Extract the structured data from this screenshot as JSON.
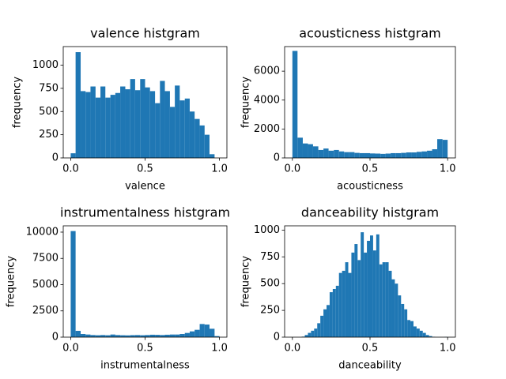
{
  "chart_data": [
    {
      "type": "histogram",
      "title": "valence histgram",
      "xlabel": "valence",
      "ylabel": "frequency",
      "color": "#1f77b4",
      "bins": [
        0,
        0.033,
        0.067,
        0.1,
        0.133,
        0.167,
        0.2,
        0.233,
        0.267,
        0.3,
        0.333,
        0.367,
        0.4,
        0.433,
        0.467,
        0.5,
        0.533,
        0.567,
        0.6,
        0.633,
        0.667,
        0.7,
        0.733,
        0.767,
        0.8,
        0.833,
        0.867,
        0.9,
        0.933,
        0.967,
        1
      ],
      "values": [
        50,
        1140,
        720,
        710,
        770,
        650,
        770,
        650,
        680,
        700,
        770,
        740,
        850,
        730,
        850,
        760,
        720,
        590,
        830,
        720,
        550,
        780,
        620,
        640,
        500,
        420,
        350,
        250,
        40,
        0
      ],
      "xlim": [
        -0.05,
        1.05
      ],
      "ylim": [
        0,
        1200
      ],
      "xticks": [
        {
          "value": 0,
          "label": "0.0"
        },
        {
          "value": 0.5,
          "label": "0.5"
        },
        {
          "value": 1,
          "label": "1.0"
        }
      ],
      "yticks": [
        0,
        250,
        500,
        750,
        1000
      ]
    },
    {
      "type": "histogram",
      "title": "acousticness histgram",
      "xlabel": "acousticness",
      "ylabel": "frequency",
      "color": "#1f77b4",
      "bins": [
        0,
        0.033,
        0.067,
        0.1,
        0.133,
        0.167,
        0.2,
        0.233,
        0.267,
        0.3,
        0.333,
        0.367,
        0.4,
        0.433,
        0.467,
        0.5,
        0.533,
        0.567,
        0.6,
        0.633,
        0.667,
        0.7,
        0.733,
        0.767,
        0.8,
        0.833,
        0.867,
        0.9,
        0.933,
        0.967,
        1
      ],
      "values": [
        7400,
        1400,
        1000,
        950,
        800,
        550,
        650,
        500,
        550,
        450,
        400,
        400,
        350,
        330,
        330,
        310,
        300,
        280,
        300,
        330,
        330,
        350,
        380,
        380,
        420,
        450,
        500,
        600,
        1300,
        1250
      ],
      "xlim": [
        -0.05,
        1.05
      ],
      "ylim": [
        0,
        7700
      ],
      "xticks": [
        {
          "value": 0,
          "label": "0.0"
        },
        {
          "value": 0.5,
          "label": "0.5"
        },
        {
          "value": 1,
          "label": "1.0"
        }
      ],
      "yticks": [
        0,
        2000,
        4000,
        6000
      ]
    },
    {
      "type": "histogram",
      "title": "instrumentalness histgram",
      "xlabel": "instrumentalness",
      "ylabel": "frequency",
      "color": "#1f77b4",
      "bins": [
        0,
        0.033,
        0.067,
        0.1,
        0.133,
        0.167,
        0.2,
        0.233,
        0.267,
        0.3,
        0.333,
        0.367,
        0.4,
        0.433,
        0.467,
        0.5,
        0.533,
        0.567,
        0.6,
        0.633,
        0.667,
        0.7,
        0.733,
        0.767,
        0.8,
        0.833,
        0.867,
        0.9,
        0.933,
        0.967,
        1
      ],
      "values": [
        10100,
        600,
        300,
        250,
        200,
        180,
        200,
        180,
        250,
        200,
        180,
        170,
        190,
        200,
        180,
        200,
        230,
        220,
        200,
        230,
        250,
        250,
        300,
        400,
        550,
        700,
        1250,
        1200,
        800,
        100
      ],
      "xlim": [
        -0.05,
        1.05
      ],
      "ylim": [
        0,
        10600
      ],
      "xticks": [
        {
          "value": 0,
          "label": "0.0"
        },
        {
          "value": 0.5,
          "label": "0.5"
        },
        {
          "value": 1,
          "label": "1.0"
        }
      ],
      "yticks": [
        0,
        2500,
        5000,
        7500,
        10000
      ]
    },
    {
      "type": "histogram",
      "title": "danceability histgram",
      "xlabel": "danceability",
      "ylabel": "frequency",
      "color": "#1f77b4",
      "bins": [
        0,
        0.02,
        0.04,
        0.06,
        0.08,
        0.1,
        0.12,
        0.14,
        0.16,
        0.18,
        0.2,
        0.22,
        0.24,
        0.26,
        0.28,
        0.3,
        0.32,
        0.34,
        0.36,
        0.38,
        0.4,
        0.42,
        0.44,
        0.46,
        0.48,
        0.5,
        0.52,
        0.54,
        0.56,
        0.58,
        0.6,
        0.62,
        0.64,
        0.66,
        0.68,
        0.7,
        0.72,
        0.74,
        0.76,
        0.78,
        0.8,
        0.82,
        0.84,
        0.86,
        0.88,
        0.9,
        0.92,
        0.94,
        0.96,
        0.98,
        1
      ],
      "values": [
        0,
        0,
        0,
        5,
        20,
        40,
        60,
        80,
        130,
        200,
        260,
        300,
        420,
        450,
        480,
        600,
        620,
        700,
        600,
        790,
        870,
        720,
        980,
        790,
        900,
        950,
        810,
        960,
        680,
        700,
        700,
        620,
        540,
        500,
        390,
        310,
        260,
        160,
        150,
        100,
        80,
        60,
        40,
        20,
        10,
        3,
        0,
        0,
        0,
        2
      ],
      "xlim": [
        -0.05,
        1.05
      ],
      "ylim": [
        0,
        1040
      ],
      "xticks": [
        {
          "value": 0,
          "label": "0.0"
        },
        {
          "value": 0.5,
          "label": "0.5"
        },
        {
          "value": 1,
          "label": "1.0"
        }
      ],
      "yticks": [
        0,
        250,
        500,
        750,
        1000
      ]
    }
  ]
}
